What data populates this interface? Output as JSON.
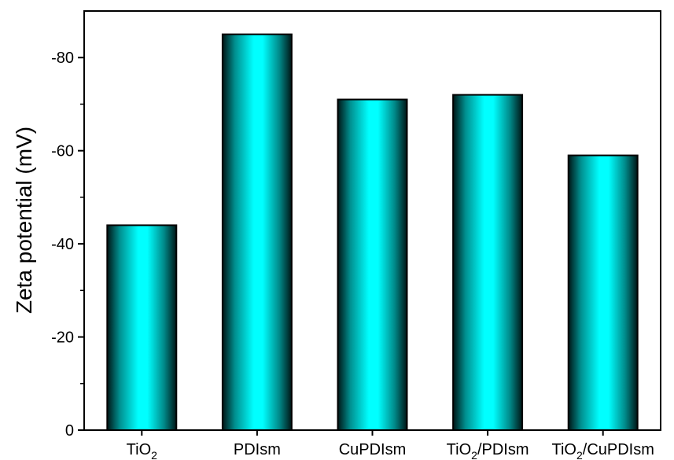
{
  "chart_data": {
    "type": "bar",
    "title": "",
    "xlabel": "",
    "ylabel": "Zeta potential (mV)",
    "categories": [
      {
        "base": "TiO",
        "sub": "2",
        "rest": ""
      },
      {
        "base": "PDIsm",
        "sub": "",
        "rest": ""
      },
      {
        "base": "CuPDIsm",
        "sub": "",
        "rest": ""
      },
      {
        "base": "TiO",
        "sub": "2",
        "rest": "/PDIsm"
      },
      {
        "base": "TiO",
        "sub": "2",
        "rest": "/CuPDIsm"
      }
    ],
    "values": [
      -44,
      -85,
      -71,
      -72,
      -59
    ],
    "ylim": [
      0,
      -90
    ],
    "yticks": [
      0,
      -20,
      -40,
      -60,
      -80
    ],
    "ytick_labels": [
      "0",
      "-20",
      "-40",
      "-60",
      "-80"
    ],
    "grid": false,
    "colors": {
      "bar_center": "#00ffff",
      "bar_edge": "#003333",
      "axis": "#000000"
    }
  }
}
